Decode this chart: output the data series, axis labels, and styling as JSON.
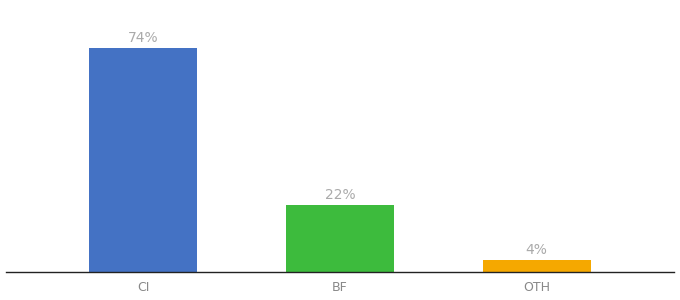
{
  "categories": [
    "CI",
    "BF",
    "OTH"
  ],
  "values": [
    74,
    22,
    4
  ],
  "bar_colors": [
    "#4472c4",
    "#3dbb3d",
    "#f5a800"
  ],
  "background_color": "#ffffff",
  "label_color": "#aaaaaa",
  "label_fontsize": 10,
  "tick_fontsize": 9,
  "tick_color": "#888888",
  "ylim": [
    0,
    88
  ],
  "bar_width": 0.55
}
